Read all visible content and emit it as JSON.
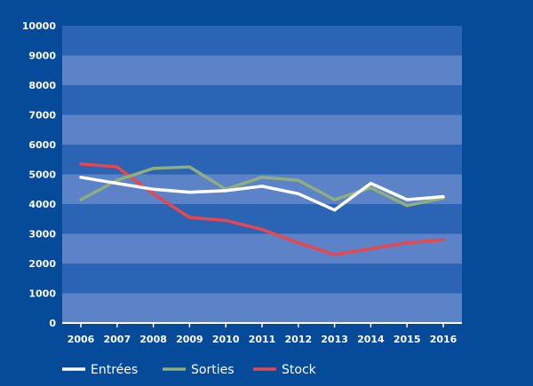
{
  "chart_data": {
    "type": "line",
    "x": [
      "2006",
      "2007",
      "2008",
      "2009",
      "2010",
      "2011",
      "2012",
      "2013",
      "2014",
      "2015",
      "2016"
    ],
    "ylim": [
      0,
      10000
    ],
    "yticks": [
      0,
      1000,
      2000,
      3000,
      4000,
      5000,
      6000,
      7000,
      8000,
      9000,
      10000
    ],
    "grid": "alternating horizontal bands",
    "legend_position": "bottom",
    "series": [
      {
        "name": "Entrées",
        "color": "#ffffff",
        "values": [
          4900,
          4700,
          4500,
          4400,
          4450,
          4600,
          4350,
          3800,
          4700,
          4150,
          4250
        ]
      },
      {
        "name": "Sorties",
        "color": "#8fae7d",
        "values": [
          4150,
          4800,
          5200,
          5250,
          4500,
          4900,
          4800,
          4150,
          4550,
          3950,
          4200
        ]
      },
      {
        "name": "Stock",
        "color": "#e8474e",
        "values": [
          5350,
          5250,
          4350,
          3550,
          3450,
          3150,
          2700,
          2300,
          2500,
          2700,
          2800
        ]
      }
    ]
  },
  "colors": {
    "background": "#064a9a",
    "band_dark": "#2b63b5",
    "band_light": "#5c83c8",
    "axis": "#ffffff"
  }
}
